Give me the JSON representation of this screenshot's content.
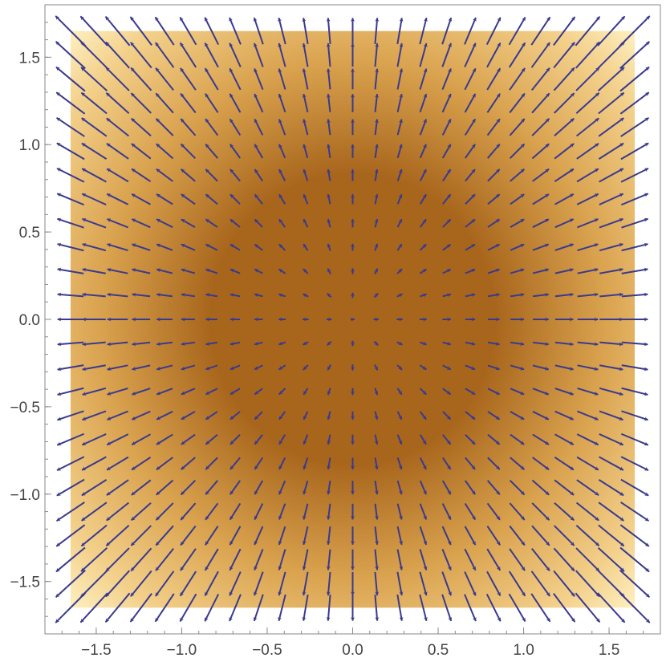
{
  "chart_data": {
    "type": "vector_field",
    "title": "",
    "xlabel": "",
    "ylabel": "",
    "xlim": [
      -1.8,
      1.8
    ],
    "ylim": [
      -1.8,
      1.8
    ],
    "field_domain": {
      "x": [
        -1.65,
        1.65
      ],
      "y": [
        -1.65,
        1.65
      ]
    },
    "grid_points_per_axis": 25,
    "field_description": "outward radial field whose magnitude grows with distance from the origin (approximately (x, y) * (x^2 + y^2))",
    "background_density": "brown at centre, fading to pale yellow near the edges",
    "x_ticks": [
      {
        "value": -1.5,
        "label": "−1.5"
      },
      {
        "value": -1.0,
        "label": "−1.0"
      },
      {
        "value": -0.5,
        "label": "−0.5"
      },
      {
        "value": 0.0,
        "label": "0.0"
      },
      {
        "value": 0.5,
        "label": "0.5"
      },
      {
        "value": 1.0,
        "label": "1.0"
      },
      {
        "value": 1.5,
        "label": "1.5"
      }
    ],
    "y_ticks": [
      {
        "value": -1.5,
        "label": "−1.5"
      },
      {
        "value": -1.0,
        "label": "−1.0"
      },
      {
        "value": -0.5,
        "label": "−0.5"
      },
      {
        "value": 0.0,
        "label": "0.0"
      },
      {
        "value": 0.5,
        "label": "0.5"
      },
      {
        "value": 1.0,
        "label": "1.0"
      },
      {
        "value": 1.5,
        "label": "1.5"
      }
    ],
    "grid": false,
    "legend": "none",
    "colors": {
      "arrow": "#3a3a8f",
      "density_center": "#a8661c",
      "density_edge": "#fff4c8",
      "frame": "#8a8a8a",
      "tick_label": "#444444"
    }
  }
}
